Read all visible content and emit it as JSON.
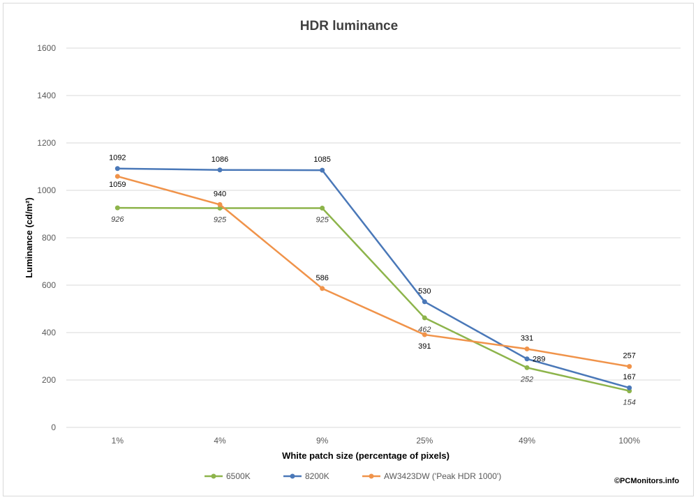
{
  "chart_data": {
    "type": "line",
    "title": "HDR luminance",
    "xlabel": "White patch size (percentage of pixels)",
    "ylabel": "Luminance (cd/m²)",
    "categories": [
      "1%",
      "4%",
      "9%",
      "25%",
      "49%",
      "100%"
    ],
    "ylim": [
      0,
      1600
    ],
    "yticks": [
      0,
      200,
      400,
      600,
      800,
      1000,
      1200,
      1400,
      1600
    ],
    "grid": true,
    "legend_position": "bottom",
    "series": [
      {
        "name": "6500K",
        "color": "#8DB44B",
        "values": [
          926,
          925,
          925,
          462,
          252,
          154
        ],
        "labels": [
          "926",
          "925",
          "925",
          "462",
          "252",
          "154"
        ],
        "label_style": "italic"
      },
      {
        "name": "8200K",
        "color": "#4A78B8",
        "values": [
          1092,
          1086,
          1085,
          530,
          289,
          167
        ],
        "labels": [
          "1092",
          "1086",
          "1085",
          "530",
          "289",
          "167"
        ],
        "label_style": "bold"
      },
      {
        "name": "AW3423DW ('Peak HDR 1000')",
        "color": "#F0934A",
        "values": [
          1059,
          940,
          586,
          391,
          331,
          257
        ],
        "labels": [
          "1059",
          "940",
          "586",
          "391",
          "331",
          "257"
        ],
        "label_style": "normal"
      }
    ]
  },
  "credit": "©PCMonitors.info"
}
